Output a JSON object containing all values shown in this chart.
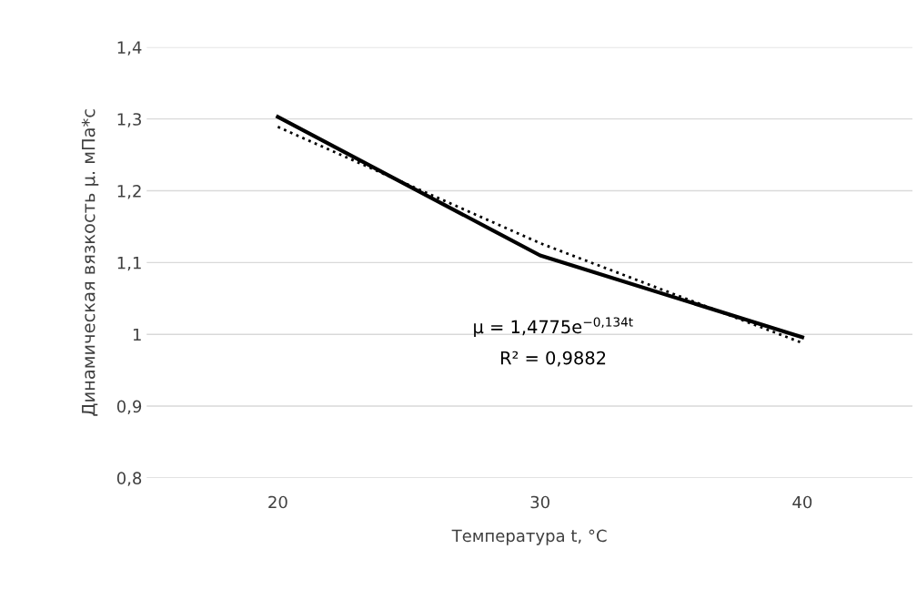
{
  "chart_data": {
    "type": "line",
    "xlabel": "Температура t, °C",
    "ylabel": "Динамическая вязкость μ. мПа*с",
    "categories": [
      "20",
      "30",
      "40"
    ],
    "series": [
      {
        "color": "#000000",
        "values": [
          1.303,
          1.11,
          0.996
        ],
        "line_style": "solid"
      },
      {
        "color": "#000000",
        "values": [
          1.289,
          1.127,
          0.988
        ],
        "line_style": "dotted"
      }
    ],
    "ylim": [
      0.8,
      1.4
    ],
    "yticks": [
      {
        "value": 0.8,
        "label": "0,8"
      },
      {
        "value": 0.9,
        "label": "0,9"
      },
      {
        "value": 1,
        "label": "1"
      },
      {
        "value": 1.1,
        "label": "1,1"
      },
      {
        "value": 1.2,
        "label": "1,2"
      },
      {
        "value": 1.3,
        "label": "1,3"
      },
      {
        "value": 1.4,
        "label": "1,4"
      }
    ],
    "grid": "y",
    "marker": "none",
    "annotations": [
      "μ = 1,4775e$^{−0,134t}$",
      "R² = 0,9882"
    ]
  }
}
